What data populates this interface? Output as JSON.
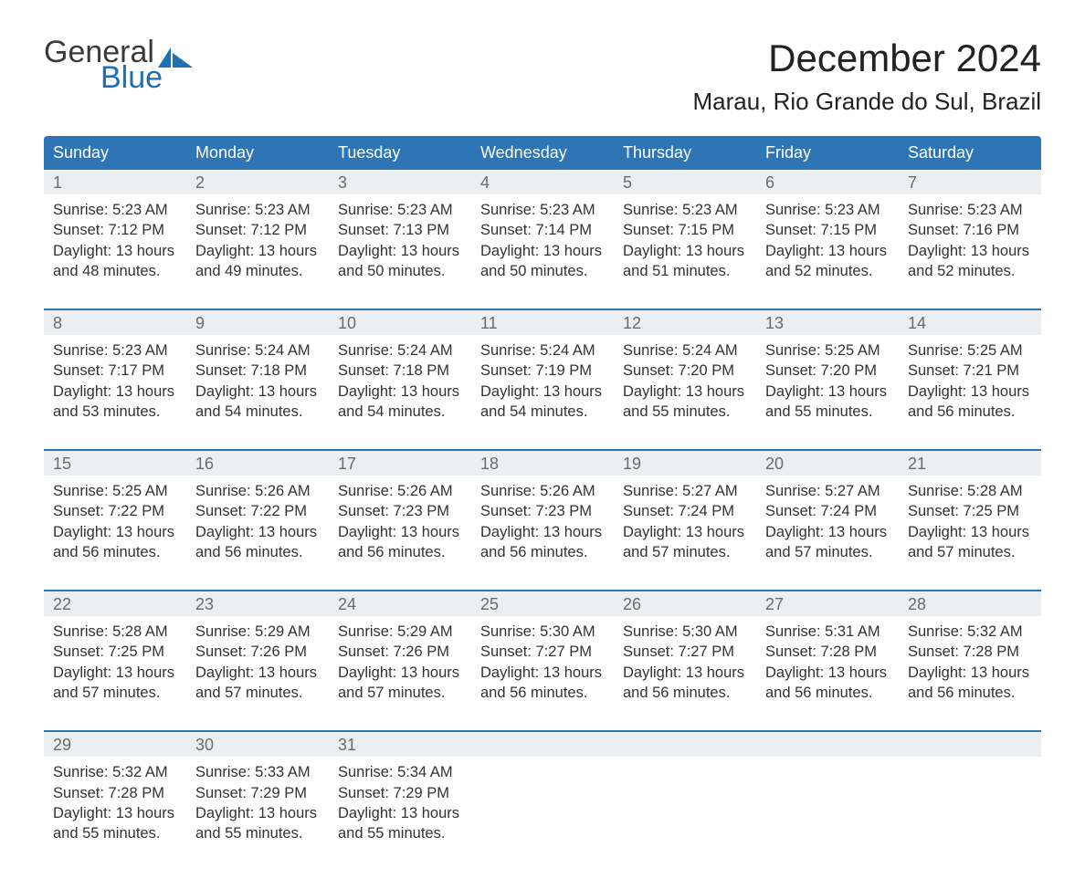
{
  "brand": {
    "word1": "General",
    "word2": "Blue",
    "icon_color": "#1f6fb2",
    "text_dark": "#3a3a3a"
  },
  "title": "December 2024",
  "location": "Marau, Rio Grande do Sul, Brazil",
  "colors": {
    "header_bg": "#2e75b6",
    "header_text": "#ffffff",
    "daynum_bg": "#eceff1",
    "daynum_text": "#6b6b6b",
    "body_text": "#333333",
    "rule": "#2e75b6",
    "page_bg": "#ffffff"
  },
  "typography": {
    "title_fontsize": 42,
    "location_fontsize": 26,
    "dow_fontsize": 18,
    "daynum_fontsize": 18,
    "cell_fontsize": 16.5,
    "font_family": "Arial"
  },
  "days_of_week": [
    "Sunday",
    "Monday",
    "Tuesday",
    "Wednesday",
    "Thursday",
    "Friday",
    "Saturday"
  ],
  "weeks": [
    [
      {
        "n": "1",
        "sunrise": "Sunrise: 5:23 AM",
        "sunset": "Sunset: 7:12 PM",
        "d1": "Daylight: 13 hours",
        "d2": "and 48 minutes."
      },
      {
        "n": "2",
        "sunrise": "Sunrise: 5:23 AM",
        "sunset": "Sunset: 7:12 PM",
        "d1": "Daylight: 13 hours",
        "d2": "and 49 minutes."
      },
      {
        "n": "3",
        "sunrise": "Sunrise: 5:23 AM",
        "sunset": "Sunset: 7:13 PM",
        "d1": "Daylight: 13 hours",
        "d2": "and 50 minutes."
      },
      {
        "n": "4",
        "sunrise": "Sunrise: 5:23 AM",
        "sunset": "Sunset: 7:14 PM",
        "d1": "Daylight: 13 hours",
        "d2": "and 50 minutes."
      },
      {
        "n": "5",
        "sunrise": "Sunrise: 5:23 AM",
        "sunset": "Sunset: 7:15 PM",
        "d1": "Daylight: 13 hours",
        "d2": "and 51 minutes."
      },
      {
        "n": "6",
        "sunrise": "Sunrise: 5:23 AM",
        "sunset": "Sunset: 7:15 PM",
        "d1": "Daylight: 13 hours",
        "d2": "and 52 minutes."
      },
      {
        "n": "7",
        "sunrise": "Sunrise: 5:23 AM",
        "sunset": "Sunset: 7:16 PM",
        "d1": "Daylight: 13 hours",
        "d2": "and 52 minutes."
      }
    ],
    [
      {
        "n": "8",
        "sunrise": "Sunrise: 5:23 AM",
        "sunset": "Sunset: 7:17 PM",
        "d1": "Daylight: 13 hours",
        "d2": "and 53 minutes."
      },
      {
        "n": "9",
        "sunrise": "Sunrise: 5:24 AM",
        "sunset": "Sunset: 7:18 PM",
        "d1": "Daylight: 13 hours",
        "d2": "and 54 minutes."
      },
      {
        "n": "10",
        "sunrise": "Sunrise: 5:24 AM",
        "sunset": "Sunset: 7:18 PM",
        "d1": "Daylight: 13 hours",
        "d2": "and 54 minutes."
      },
      {
        "n": "11",
        "sunrise": "Sunrise: 5:24 AM",
        "sunset": "Sunset: 7:19 PM",
        "d1": "Daylight: 13 hours",
        "d2": "and 54 minutes."
      },
      {
        "n": "12",
        "sunrise": "Sunrise: 5:24 AM",
        "sunset": "Sunset: 7:20 PM",
        "d1": "Daylight: 13 hours",
        "d2": "and 55 minutes."
      },
      {
        "n": "13",
        "sunrise": "Sunrise: 5:25 AM",
        "sunset": "Sunset: 7:20 PM",
        "d1": "Daylight: 13 hours",
        "d2": "and 55 minutes."
      },
      {
        "n": "14",
        "sunrise": "Sunrise: 5:25 AM",
        "sunset": "Sunset: 7:21 PM",
        "d1": "Daylight: 13 hours",
        "d2": "and 56 minutes."
      }
    ],
    [
      {
        "n": "15",
        "sunrise": "Sunrise: 5:25 AM",
        "sunset": "Sunset: 7:22 PM",
        "d1": "Daylight: 13 hours",
        "d2": "and 56 minutes."
      },
      {
        "n": "16",
        "sunrise": "Sunrise: 5:26 AM",
        "sunset": "Sunset: 7:22 PM",
        "d1": "Daylight: 13 hours",
        "d2": "and 56 minutes."
      },
      {
        "n": "17",
        "sunrise": "Sunrise: 5:26 AM",
        "sunset": "Sunset: 7:23 PM",
        "d1": "Daylight: 13 hours",
        "d2": "and 56 minutes."
      },
      {
        "n": "18",
        "sunrise": "Sunrise: 5:26 AM",
        "sunset": "Sunset: 7:23 PM",
        "d1": "Daylight: 13 hours",
        "d2": "and 56 minutes."
      },
      {
        "n": "19",
        "sunrise": "Sunrise: 5:27 AM",
        "sunset": "Sunset: 7:24 PM",
        "d1": "Daylight: 13 hours",
        "d2": "and 57 minutes."
      },
      {
        "n": "20",
        "sunrise": "Sunrise: 5:27 AM",
        "sunset": "Sunset: 7:24 PM",
        "d1": "Daylight: 13 hours",
        "d2": "and 57 minutes."
      },
      {
        "n": "21",
        "sunrise": "Sunrise: 5:28 AM",
        "sunset": "Sunset: 7:25 PM",
        "d1": "Daylight: 13 hours",
        "d2": "and 57 minutes."
      }
    ],
    [
      {
        "n": "22",
        "sunrise": "Sunrise: 5:28 AM",
        "sunset": "Sunset: 7:25 PM",
        "d1": "Daylight: 13 hours",
        "d2": "and 57 minutes."
      },
      {
        "n": "23",
        "sunrise": "Sunrise: 5:29 AM",
        "sunset": "Sunset: 7:26 PM",
        "d1": "Daylight: 13 hours",
        "d2": "and 57 minutes."
      },
      {
        "n": "24",
        "sunrise": "Sunrise: 5:29 AM",
        "sunset": "Sunset: 7:26 PM",
        "d1": "Daylight: 13 hours",
        "d2": "and 57 minutes."
      },
      {
        "n": "25",
        "sunrise": "Sunrise: 5:30 AM",
        "sunset": "Sunset: 7:27 PM",
        "d1": "Daylight: 13 hours",
        "d2": "and 56 minutes."
      },
      {
        "n": "26",
        "sunrise": "Sunrise: 5:30 AM",
        "sunset": "Sunset: 7:27 PM",
        "d1": "Daylight: 13 hours",
        "d2": "and 56 minutes."
      },
      {
        "n": "27",
        "sunrise": "Sunrise: 5:31 AM",
        "sunset": "Sunset: 7:28 PM",
        "d1": "Daylight: 13 hours",
        "d2": "and 56 minutes."
      },
      {
        "n": "28",
        "sunrise": "Sunrise: 5:32 AM",
        "sunset": "Sunset: 7:28 PM",
        "d1": "Daylight: 13 hours",
        "d2": "and 56 minutes."
      }
    ],
    [
      {
        "n": "29",
        "sunrise": "Sunrise: 5:32 AM",
        "sunset": "Sunset: 7:28 PM",
        "d1": "Daylight: 13 hours",
        "d2": "and 55 minutes."
      },
      {
        "n": "30",
        "sunrise": "Sunrise: 5:33 AM",
        "sunset": "Sunset: 7:29 PM",
        "d1": "Daylight: 13 hours",
        "d2": "and 55 minutes."
      },
      {
        "n": "31",
        "sunrise": "Sunrise: 5:34 AM",
        "sunset": "Sunset: 7:29 PM",
        "d1": "Daylight: 13 hours",
        "d2": "and 55 minutes."
      },
      {
        "n": "",
        "sunrise": "",
        "sunset": "",
        "d1": "",
        "d2": ""
      },
      {
        "n": "",
        "sunrise": "",
        "sunset": "",
        "d1": "",
        "d2": ""
      },
      {
        "n": "",
        "sunrise": "",
        "sunset": "",
        "d1": "",
        "d2": ""
      },
      {
        "n": "",
        "sunrise": "",
        "sunset": "",
        "d1": "",
        "d2": ""
      }
    ]
  ]
}
